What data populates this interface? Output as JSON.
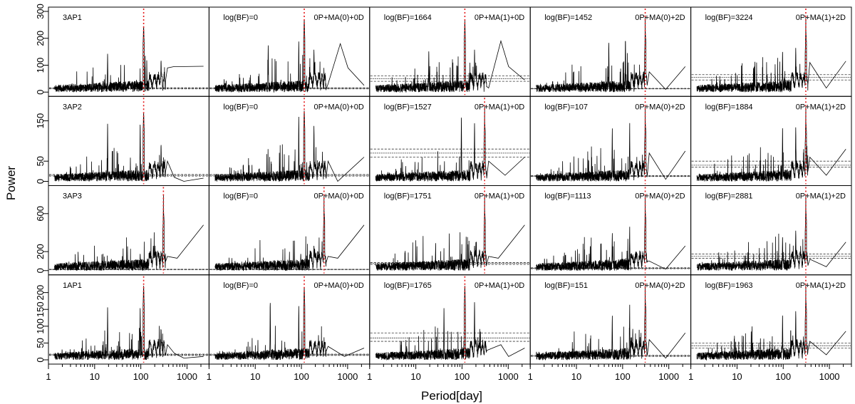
{
  "chart_data": {
    "type": "line",
    "title": "",
    "xlabel": "Period[day]",
    "ylabel": "Power",
    "x_scale": "log",
    "xlim": [
      1,
      3000
    ],
    "x_ticks": [
      1,
      10,
      100,
      1000
    ],
    "x_tick_labels": [
      "1",
      "10",
      "100",
      "1000"
    ],
    "rows": [
      {
        "name": "3AP1",
        "ylim": [
          0,
          300
        ],
        "y_ticks": [
          0,
          100,
          200,
          300
        ],
        "y_tick_labels": [
          "0",
          "100",
          "200",
          "300"
        ]
      },
      {
        "name": "3AP2",
        "ylim": [
          0,
          200
        ],
        "y_ticks": [
          0,
          50,
          150
        ],
        "y_tick_labels": [
          "0",
          "50",
          "150"
        ]
      },
      {
        "name": "3AP3",
        "ylim": [
          0,
          850
        ],
        "y_ticks": [
          0,
          200,
          600
        ],
        "y_tick_labels": [
          "0",
          "200",
          "600"
        ]
      },
      {
        "name": "1AP1",
        "ylim": [
          0,
          240
        ],
        "y_ticks": [
          0,
          50,
          100,
          150,
          200
        ],
        "y_tick_labels": [
          "0",
          "50",
          "100",
          "150",
          "200"
        ]
      }
    ],
    "columns": [
      {
        "model": ""
      },
      {
        "model": "0P+MA(0)+0D"
      },
      {
        "model": "0P+MA(1)+0D"
      },
      {
        "model": "0P+MA(0)+2D"
      },
      {
        "model": "0P+MA(1)+2D"
      }
    ],
    "panels": [
      [
        {
          "label": "3AP1",
          "peak_period": 120,
          "peak_power": 245,
          "threshold": 14,
          "thresholds": [
            12,
            14,
            16
          ],
          "tail": [
            [
              420,
              90
            ],
            [
              600,
              95
            ],
            [
              1000,
              95
            ],
            [
              2800,
              96
            ]
          ],
          "extra_peaks": [
            [
              18,
              160
            ],
            [
              300,
              120
            ]
          ]
        },
        {
          "label": "log(BF)=0",
          "peak_period": 120,
          "peak_power": 270,
          "threshold": 14,
          "thresholds": [
            12,
            14,
            16
          ],
          "tail": [
            [
              420,
              30
            ],
            [
              800,
              180
            ],
            [
              1200,
              90
            ],
            [
              2800,
              25
            ]
          ],
          "extra_peaks": [
            [
              18,
              195
            ],
            [
              90,
              200
            ],
            [
              200,
              190
            ]
          ]
        },
        {
          "label": "log(BF)=1664",
          "peak_period": 120,
          "peak_power": 265,
          "threshold": 45,
          "thresholds": [
            40,
            50,
            60
          ],
          "tail": [
            [
              420,
              15
            ],
            [
              800,
              190
            ],
            [
              1200,
              95
            ],
            [
              2800,
              45
            ]
          ],
          "extra_peaks": [
            [
              18,
              170
            ],
            [
              200,
              190
            ]
          ]
        },
        {
          "label": "log(BF)=1452",
          "peak_period": 340,
          "peak_power": 285,
          "threshold": 13,
          "thresholds": [
            12,
            13,
            14
          ],
          "tail": [
            [
              420,
              75
            ],
            [
              1000,
              10
            ],
            [
              2800,
              95
            ]
          ],
          "extra_peaks": [
            [
              50,
              200
            ],
            [
              120,
              220
            ]
          ]
        },
        {
          "label": "log(BF)=3224",
          "peak_period": 340,
          "peak_power": 285,
          "threshold": 55,
          "thresholds": [
            45,
            55,
            65
          ],
          "tail": [
            [
              420,
              110
            ],
            [
              1000,
              15
            ],
            [
              2800,
              115
            ]
          ],
          "extra_peaks": [
            [
              100,
              170
            ],
            [
              200,
              200
            ]
          ]
        }
      ],
      [
        {
          "label": "3AP2",
          "peak_period": 120,
          "peak_power": 170,
          "threshold": 15,
          "thresholds": [
            13,
            15,
            17
          ],
          "tail": [
            [
              420,
              50
            ],
            [
              600,
              10
            ],
            [
              1000,
              0
            ],
            [
              2800,
              8
            ]
          ],
          "extra_peaks": [
            [
              18,
              160
            ],
            [
              100,
              160
            ],
            [
              300,
              100
            ]
          ]
        },
        {
          "label": "log(BF)=0",
          "peak_period": 120,
          "peak_power": 175,
          "threshold": 15,
          "thresholds": [
            13,
            15,
            17
          ],
          "tail": [
            [
              420,
              50
            ],
            [
              700,
              0
            ],
            [
              2800,
              60
            ]
          ],
          "extra_peaks": [
            [
              90,
              170
            ],
            [
              200,
              175
            ]
          ]
        },
        {
          "label": "log(BF)=1527",
          "peak_period": 340,
          "peak_power": 185,
          "threshold": 70,
          "thresholds": [
            60,
            70,
            80
          ],
          "tail": [
            [
              420,
              50
            ],
            [
              1000,
              15
            ],
            [
              2800,
              60
            ]
          ],
          "extra_peaks": [
            [
              100,
              180
            ],
            [
              200,
              185
            ]
          ]
        },
        {
          "label": "log(BF)=107",
          "peak_period": 340,
          "peak_power": 185,
          "threshold": 13,
          "thresholds": [
            12,
            13,
            14
          ],
          "tail": [
            [
              420,
              70
            ],
            [
              1000,
              5
            ],
            [
              2800,
              75
            ]
          ],
          "extra_peaks": [
            [
              60,
              140
            ],
            [
              150,
              150
            ]
          ]
        },
        {
          "label": "log(BF)=1884",
          "peak_period": 340,
          "peak_power": 185,
          "threshold": 40,
          "thresholds": [
            35,
            40,
            50
          ],
          "tail": [
            [
              420,
              60
            ],
            [
              1000,
              15
            ],
            [
              2800,
              80
            ]
          ],
          "extra_peaks": [
            [
              100,
              150
            ],
            [
              200,
              170
            ]
          ]
        }
      ],
      [
        {
          "label": "3AP3",
          "peak_period": 340,
          "peak_power": 800,
          "threshold": 12,
          "thresholds": [
            10,
            12,
            14
          ],
          "tail": [
            [
              420,
              150
            ],
            [
              700,
              130
            ],
            [
              2800,
              480
            ]
          ],
          "extra_peaks": [
            [
              100,
              200
            ],
            [
              200,
              260
            ]
          ]
        },
        {
          "label": "log(BF)=0",
          "peak_period": 340,
          "peak_power": 800,
          "threshold": 12,
          "thresholds": [
            10,
            12,
            14
          ],
          "tail": [
            [
              420,
              150
            ],
            [
              700,
              130
            ],
            [
              2800,
              480
            ]
          ],
          "extra_peaks": [
            [
              100,
              200
            ],
            [
              200,
              260
            ]
          ]
        },
        {
          "label": "log(BF)=1751",
          "peak_period": 340,
          "peak_power": 800,
          "threshold": 75,
          "thresholds": [
            65,
            75,
            85
          ],
          "tail": [
            [
              420,
              150
            ],
            [
              700,
              130
            ],
            [
              2800,
              480
            ]
          ],
          "extra_peaks": [
            [
              100,
              200
            ],
            [
              200,
              260
            ]
          ]
        },
        {
          "label": "log(BF)=1113",
          "peak_period": 340,
          "peak_power": 800,
          "threshold": 25,
          "thresholds": [
            20,
            25,
            30
          ],
          "tail": [
            [
              420,
              100
            ],
            [
              1000,
              15
            ],
            [
              2800,
              260
            ]
          ],
          "extra_peaks": [
            [
              60,
              420
            ],
            [
              150,
              480
            ]
          ]
        },
        {
          "label": "log(BF)=2881",
          "peak_period": 340,
          "peak_power": 800,
          "threshold": 150,
          "thresholds": [
            130,
            150,
            175
          ],
          "tail": [
            [
              420,
              120
            ],
            [
              1000,
              40
            ],
            [
              2800,
              300
            ]
          ],
          "extra_peaks": [
            [
              100,
              400
            ],
            [
              200,
              500
            ]
          ]
        }
      ],
      [
        {
          "label": "1AP1",
          "peak_period": 120,
          "peak_power": 220,
          "threshold": 15,
          "thresholds": [
            13,
            15,
            17
          ],
          "tail": [
            [
              420,
              45
            ],
            [
              600,
              20
            ],
            [
              1000,
              5
            ],
            [
              2800,
              10
            ]
          ],
          "extra_peaks": [
            [
              18,
              175
            ],
            [
              100,
              175
            ],
            [
              300,
              90
            ]
          ]
        },
        {
          "label": "log(BF)=0",
          "peak_period": 120,
          "peak_power": 215,
          "threshold": 15,
          "thresholds": [
            13,
            15,
            17
          ],
          "tail": [
            [
              420,
              40
            ],
            [
              1000,
              10
            ],
            [
              2800,
              35
            ]
          ],
          "extra_peaks": [
            [
              20,
              190
            ],
            [
              90,
              170
            ]
          ]
        },
        {
          "label": "log(BF)=1765",
          "peak_period": 120,
          "peak_power": 220,
          "threshold": 65,
          "thresholds": [
            55,
            65,
            80
          ],
          "tail": [
            [
              420,
              30
            ],
            [
              800,
              45
            ],
            [
              1200,
              10
            ],
            [
              2800,
              35
            ]
          ],
          "extra_peaks": [
            [
              40,
              170
            ],
            [
              200,
              220
            ]
          ]
        },
        {
          "label": "log(BF)=151",
          "peak_period": 340,
          "peak_power": 225,
          "threshold": 12,
          "thresholds": [
            10,
            12,
            14
          ],
          "tail": [
            [
              420,
              60
            ],
            [
              1000,
              5
            ],
            [
              2800,
              80
            ]
          ],
          "extra_peaks": [
            [
              60,
              140
            ],
            [
              150,
              170
            ]
          ]
        },
        {
          "label": "log(BF)=1963",
          "peak_period": 340,
          "peak_power": 225,
          "threshold": 40,
          "thresholds": [
            35,
            42,
            50
          ],
          "tail": [
            [
              420,
              55
            ],
            [
              1000,
              15
            ],
            [
              2800,
              85
            ]
          ],
          "extra_peaks": [
            [
              100,
              150
            ],
            [
              200,
              180
            ]
          ]
        }
      ]
    ]
  }
}
